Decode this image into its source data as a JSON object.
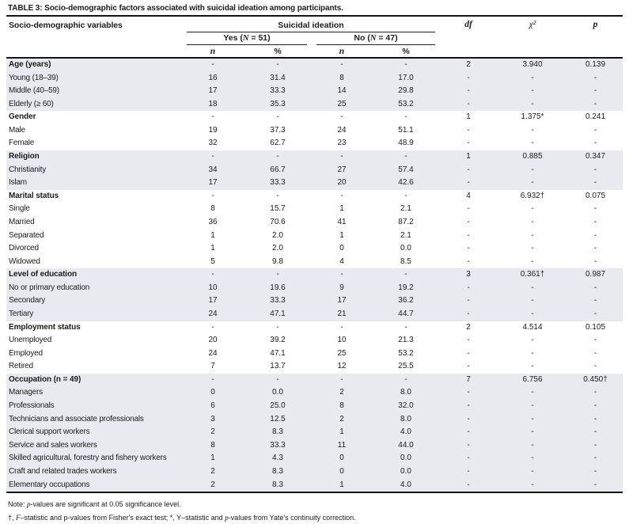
{
  "title": "TABLE 3: Socio-demographic factors associated with suicidal ideation among participants.",
  "header": {
    "variables": "Socio-demographic variables",
    "group": "Suicidal ideation",
    "yes_parts": [
      {
        "t": "Yes ("
      },
      {
        "t": "N",
        "i": true
      },
      {
        "t": " = 51)"
      }
    ],
    "no_parts": [
      {
        "t": "No ("
      },
      {
        "t": "N",
        "i": true
      },
      {
        "t": " = 47)"
      }
    ],
    "n": "n",
    "pct": "%",
    "df": "df",
    "chi": "χ²",
    "p": "p"
  },
  "rows": [
    {
      "label": "Age (years)",
      "n1": "-",
      "pct1": "-",
      "n2": "-",
      "pct2": "-",
      "df": "2",
      "chi": "3.940",
      "p": "0.139",
      "bold": true,
      "shaded": true
    },
    {
      "label": "Young (18–39)",
      "n1": "16",
      "pct1": "31.4",
      "n2": "8",
      "pct2": "17.0",
      "df": "-",
      "chi": "-",
      "p": "-",
      "bold": false,
      "shaded": true
    },
    {
      "label": "Middle (40–59)",
      "n1": "17",
      "pct1": "33.3",
      "n2": "14",
      "pct2": "29.8",
      "df": "-",
      "chi": "-",
      "p": "-",
      "bold": false,
      "shaded": true
    },
    {
      "label": "Elderly (≥ 60)",
      "n1": "18",
      "pct1": "35.3",
      "n2": "25",
      "pct2": "53.2",
      "df": "-",
      "chi": "-",
      "p": "-",
      "bold": false,
      "shaded": true
    },
    {
      "label": "Gender",
      "n1": "-",
      "pct1": "-",
      "n2": "-",
      "pct2": "-",
      "df": "1",
      "chi": "1.375*",
      "p": "0.241",
      "bold": true,
      "shaded": false
    },
    {
      "label": "Male",
      "n1": "19",
      "pct1": "37.3",
      "n2": "24",
      "pct2": "51.1",
      "df": "-",
      "chi": "-",
      "p": "-",
      "bold": false,
      "shaded": false
    },
    {
      "label": "Female",
      "n1": "32",
      "pct1": "62.7",
      "n2": "23",
      "pct2": "48.9",
      "df": "-",
      "chi": "-",
      "p": "-",
      "bold": false,
      "shaded": false
    },
    {
      "label": "Religion",
      "n1": "-",
      "pct1": "-",
      "n2": "-",
      "pct2": "-",
      "df": "1",
      "chi": "0.885",
      "p": "0.347",
      "bold": true,
      "shaded": true
    },
    {
      "label": "Christianity",
      "n1": "34",
      "pct1": "66.7",
      "n2": "27",
      "pct2": "57.4",
      "df": "-",
      "chi": "-",
      "p": "-",
      "bold": false,
      "shaded": true
    },
    {
      "label": "Islam",
      "n1": "17",
      "pct1": "33.3",
      "n2": "20",
      "pct2": "42.6",
      "df": "-",
      "chi": "-",
      "p": "-",
      "bold": false,
      "shaded": true
    },
    {
      "label": "Marital status",
      "n1": "-",
      "pct1": "-",
      "n2": "-",
      "pct2": "-",
      "df": "4",
      "chi": "6.932†",
      "p": "0.075",
      "bold": true,
      "shaded": false
    },
    {
      "label": "Single",
      "n1": "8",
      "pct1": "15.7",
      "n2": "1",
      "pct2": "2.1",
      "df": "-",
      "chi": "-",
      "p": "-",
      "bold": false,
      "shaded": false
    },
    {
      "label": "Married",
      "n1": "36",
      "pct1": "70.6",
      "n2": "41",
      "pct2": "87.2",
      "df": "-",
      "chi": "-",
      "p": "-",
      "bold": false,
      "shaded": false
    },
    {
      "label": "Separated",
      "n1": "1",
      "pct1": "2.0",
      "n2": "1",
      "pct2": "2.1",
      "df": "-",
      "chi": "-",
      "p": "-",
      "bold": false,
      "shaded": false
    },
    {
      "label": "Divorced",
      "n1": "1",
      "pct1": "2.0",
      "n2": "0",
      "pct2": "0.0",
      "df": "-",
      "chi": "-",
      "p": "-",
      "bold": false,
      "shaded": false
    },
    {
      "label": "Widowed",
      "n1": "5",
      "pct1": "9.8",
      "n2": "4",
      "pct2": "8.5",
      "df": "-",
      "chi": "-",
      "p": "-",
      "bold": false,
      "shaded": false
    },
    {
      "label": "Level of education",
      "n1": "-",
      "pct1": "-",
      "n2": "-",
      "pct2": "-",
      "df": "3",
      "chi": "0.361†",
      "p": "0.987",
      "bold": true,
      "shaded": true
    },
    {
      "label": "No or primary education",
      "n1": "10",
      "pct1": "19.6",
      "n2": "9",
      "pct2": "19.2",
      "df": "-",
      "chi": "-",
      "p": "-",
      "bold": false,
      "shaded": true
    },
    {
      "label": "Secondary",
      "n1": "17",
      "pct1": "33.3",
      "n2": "17",
      "pct2": "36.2",
      "df": "-",
      "chi": "-",
      "p": "-",
      "bold": false,
      "shaded": true
    },
    {
      "label": "Tertiary",
      "n1": "24",
      "pct1": "47.1",
      "n2": "21",
      "pct2": "44.7",
      "df": "-",
      "chi": "-",
      "p": "-",
      "bold": false,
      "shaded": true
    },
    {
      "label": "Employment status",
      "n1": "-",
      "pct1": "-",
      "n2": "-",
      "pct2": "-",
      "df": "2",
      "chi": "4.514",
      "p": "0.105",
      "bold": true,
      "shaded": false
    },
    {
      "label": "Unemployed",
      "n1": "20",
      "pct1": "39.2",
      "n2": "10",
      "pct2": "21.3",
      "df": "-",
      "chi": "-",
      "p": "-",
      "bold": false,
      "shaded": false
    },
    {
      "label": "Employed",
      "n1": "24",
      "pct1": "47.1",
      "n2": "25",
      "pct2": "53.2",
      "df": "-",
      "chi": "-",
      "p": "-",
      "bold": false,
      "shaded": false
    },
    {
      "label": "Retired",
      "n1": "7",
      "pct1": "13.7",
      "n2": "12",
      "pct2": "25.5",
      "df": "-",
      "chi": "-",
      "p": "-",
      "bold": false,
      "shaded": false
    },
    {
      "label": "Occupation (n = 49)",
      "n1": "-",
      "pct1": "-",
      "n2": "-",
      "pct2": "-",
      "df": "7",
      "chi": "6.756",
      "p": "0.450†",
      "bold": true,
      "shaded": true
    },
    {
      "label": "Managers",
      "n1": "0",
      "pct1": "0.0",
      "n2": "2",
      "pct2": "8.0",
      "df": "-",
      "chi": "-",
      "p": "-",
      "bold": false,
      "shaded": true
    },
    {
      "label": "Professionals",
      "n1": "6",
      "pct1": "25.0",
      "n2": "8",
      "pct2": "32.0",
      "df": "-",
      "chi": "-",
      "p": "-",
      "bold": false,
      "shaded": true
    },
    {
      "label": "Technicians and associate professionals",
      "n1": "3",
      "pct1": "12.5",
      "n2": "2",
      "pct2": "8.0",
      "df": "-",
      "chi": "-",
      "p": "-",
      "bold": false,
      "shaded": true
    },
    {
      "label": "Clerical support workers",
      "n1": "2",
      "pct1": "8.3",
      "n2": "1",
      "pct2": "4.0",
      "df": "-",
      "chi": "-",
      "p": "-",
      "bold": false,
      "shaded": true
    },
    {
      "label": "Service and sales workers",
      "n1": "8",
      "pct1": "33.3",
      "n2": "11",
      "pct2": "44.0",
      "df": "-",
      "chi": "-",
      "p": "-",
      "bold": false,
      "shaded": true
    },
    {
      "label": "Skilled agricultural, forestry and fishery workers",
      "n1": "1",
      "pct1": "4.3",
      "n2": "0",
      "pct2": "0.0",
      "df": "-",
      "chi": "-",
      "p": "-",
      "bold": false,
      "shaded": true
    },
    {
      "label": "Craft and related trades workers",
      "n1": "2",
      "pct1": "8.3",
      "n2": "0",
      "pct2": "0.0",
      "df": "-",
      "chi": "-",
      "p": "-",
      "bold": false,
      "shaded": true
    },
    {
      "label": "Elementary occupations",
      "n1": "2",
      "pct1": "8.3",
      "n2": "1",
      "pct2": "4.0",
      "df": "-",
      "chi": "-",
      "p": "-",
      "bold": false,
      "shaded": true
    }
  ],
  "footnotes": {
    "line1_parts": [
      {
        "t": "Note: "
      },
      {
        "t": "p",
        "i": true
      },
      {
        "t": "-values are significant at 0.05 significance level."
      }
    ],
    "line2_parts": [
      {
        "t": "†, "
      },
      {
        "t": "F",
        "i": true
      },
      {
        "t": "–statistic and p-values from Fisher's exact test; *, Y–statistic and "
      },
      {
        "t": "p",
        "i": true
      },
      {
        "t": "-values from Yate's continuity correction."
      }
    ]
  }
}
